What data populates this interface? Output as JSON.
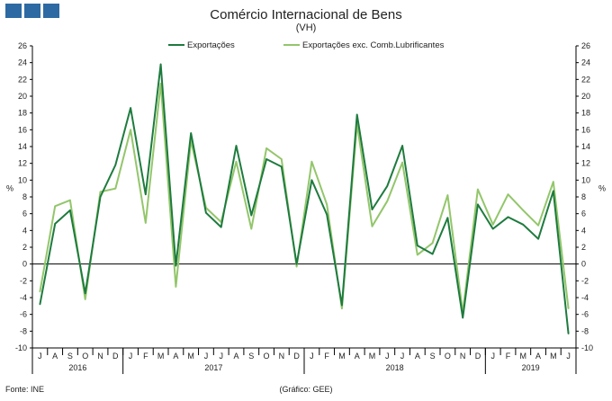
{
  "header": {
    "title": "Comércio Internacional de Bens",
    "subtitle": "(VH)"
  },
  "footer": {
    "source": "Fonte: INE",
    "credit": "(Gráfico: GEE)"
  },
  "colors": {
    "logo": "#2d6aa3",
    "exports": "#1e7b3e",
    "exports_exc": "#93c66b",
    "axis": "#000000"
  },
  "icons": [
    "logo-square-icon",
    "logo-square-icon",
    "logo-square-icon"
  ],
  "chart_data": {
    "type": "line",
    "title": "Comércio Internacional de Bens",
    "subtitle": "(VH)",
    "ylabel_left": "%",
    "ylabel_right": "%",
    "ylim": [
      -10,
      26
    ],
    "yticks": [
      -10,
      -8,
      -6,
      -4,
      -2,
      0,
      2,
      4,
      6,
      8,
      10,
      12,
      14,
      16,
      18,
      20,
      22,
      24,
      26
    ],
    "legend_placement": "top-center",
    "grid": false,
    "categories": [
      "J",
      "A",
      "S",
      "O",
      "N",
      "D",
      "J",
      "F",
      "M",
      "A",
      "M",
      "J",
      "J",
      "A",
      "S",
      "O",
      "N",
      "D",
      "J",
      "F",
      "M",
      "A",
      "M",
      "J",
      "J",
      "A",
      "S",
      "O",
      "N",
      "D",
      "J",
      "F",
      "M",
      "A",
      "M",
      "J"
    ],
    "years": [
      {
        "label": "2016",
        "start": 0,
        "end": 5
      },
      {
        "label": "2017",
        "start": 6,
        "end": 17
      },
      {
        "label": "2018",
        "start": 18,
        "end": 29
      },
      {
        "label": "2019",
        "start": 30,
        "end": 35
      }
    ],
    "series": [
      {
        "name": "Exportações",
        "values": [
          -4.8,
          4.8,
          6.4,
          -3.5,
          8.0,
          11.8,
          18.6,
          8.3,
          23.8,
          -0.2,
          15.6,
          6.1,
          4.4,
          14.1,
          5.8,
          12.5,
          11.6,
          0.0,
          10.0,
          5.9,
          -4.9,
          17.8,
          6.5,
          9.3,
          14.1,
          2.2,
          1.2,
          5.5,
          -6.4,
          7.1,
          4.2,
          5.6,
          4.7,
          3.0,
          8.7,
          -8.3
        ]
      },
      {
        "name": "Exportações exc. Comb.Lubrificantes",
        "values": [
          -3.3,
          6.9,
          7.6,
          -4.2,
          8.6,
          9.0,
          16.0,
          4.9,
          21.5,
          -2.7,
          14.7,
          6.7,
          5.0,
          12.2,
          4.2,
          13.8,
          12.5,
          -0.3,
          12.2,
          7.1,
          -5.3,
          16.7,
          4.5,
          7.5,
          12.1,
          1.1,
          2.5,
          8.2,
          -5.8,
          8.9,
          4.7,
          8.3,
          6.4,
          4.6,
          9.8,
          -5.3
        ]
      }
    ]
  }
}
